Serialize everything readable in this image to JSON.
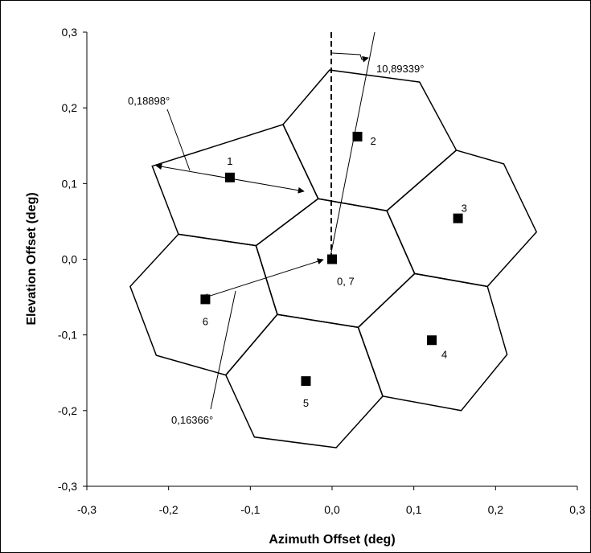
{
  "chart_data": {
    "type": "scatter",
    "title": "",
    "xlabel": "Azimuth Offset (deg)",
    "ylabel": "Elevation Offset (deg)",
    "xlim": [
      -0.3,
      0.3
    ],
    "ylim": [
      -0.3,
      0.3
    ],
    "x_ticks": [
      "-0,3",
      "-0,2",
      "-0,1",
      "0,0",
      "0,1",
      "0,2",
      "0,3"
    ],
    "y_ticks": [
      "-0,3",
      "-0,2",
      "-0,1",
      "0,0",
      "0,1",
      "0,2",
      "0,3"
    ],
    "grid": false,
    "points": [
      {
        "label": "1",
        "x": -0.125,
        "y": 0.108
      },
      {
        "label": "2",
        "x": 0.031,
        "y": 0.162
      },
      {
        "label": "3",
        "x": 0.154,
        "y": 0.054
      },
      {
        "label": "4",
        "x": 0.122,
        "y": -0.107
      },
      {
        "label": "5",
        "x": -0.032,
        "y": -0.161
      },
      {
        "label": "6",
        "x": -0.155,
        "y": -0.053
      },
      {
        "label": "0, 7",
        "x": 0.0,
        "y": 0.0
      }
    ],
    "hexagons": [
      [
        [
          -0.22,
          0.123
        ],
        [
          -0.06,
          0.178
        ],
        [
          -0.017,
          0.08
        ],
        [
          -0.093,
          0.018
        ],
        [
          -0.188,
          0.033
        ]
      ],
      [
        [
          -0.06,
          0.178
        ],
        [
          -0.003,
          0.25
        ],
        [
          0.107,
          0.234
        ],
        [
          0.152,
          0.144
        ],
        [
          0.067,
          0.064
        ],
        [
          -0.017,
          0.08
        ]
      ],
      [
        [
          0.067,
          0.064
        ],
        [
          0.152,
          0.144
        ],
        [
          0.21,
          0.126
        ],
        [
          0.25,
          0.036
        ],
        [
          0.19,
          -0.036
        ],
        [
          0.101,
          -0.019
        ]
      ],
      [
        [
          0.101,
          -0.019
        ],
        [
          0.19,
          -0.036
        ],
        [
          0.214,
          -0.126
        ],
        [
          0.158,
          -0.2
        ],
        [
          0.062,
          -0.181
        ],
        [
          0.032,
          -0.09
        ]
      ],
      [
        [
          0.032,
          -0.09
        ],
        [
          0.062,
          -0.181
        ],
        [
          0.005,
          -0.249
        ],
        [
          -0.095,
          -0.235
        ],
        [
          -0.13,
          -0.153
        ],
        [
          -0.067,
          -0.073
        ]
      ],
      [
        [
          -0.093,
          0.018
        ],
        [
          -0.067,
          -0.073
        ],
        [
          -0.13,
          -0.153
        ],
        [
          -0.215,
          -0.127
        ],
        [
          -0.247,
          -0.036
        ],
        [
          -0.188,
          0.033
        ]
      ],
      [
        [
          -0.017,
          0.08
        ],
        [
          0.067,
          0.064
        ],
        [
          0.101,
          -0.019
        ],
        [
          0.032,
          -0.09
        ],
        [
          -0.067,
          -0.073
        ],
        [
          -0.093,
          0.018
        ]
      ]
    ],
    "annotations": [
      {
        "text": "0,18898°"
      },
      {
        "text": "10,89339°"
      },
      {
        "text": "0,16366°"
      }
    ]
  }
}
